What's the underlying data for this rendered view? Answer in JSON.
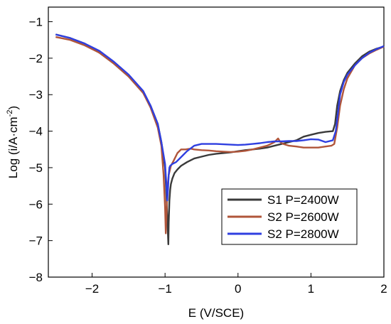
{
  "chart_data": {
    "type": "line",
    "title": "",
    "xlabel": "E (V/SCE)",
    "ylabel_main": "Log (i/A·cm",
    "ylabel_sup": "-2",
    "ylabel_close": ")",
    "xlim": [
      -2.6,
      2.0
    ],
    "ylim": [
      -8,
      -0.6
    ],
    "xticks": [
      -2,
      -1,
      0,
      1,
      2
    ],
    "xtick_labels": [
      "−2",
      "−1",
      "0",
      "1",
      "2"
    ],
    "yticks": [
      -8,
      -7,
      -6,
      -5,
      -4,
      -3,
      -2,
      -1
    ],
    "ytick_labels": [
      "−8",
      "−7",
      "−6",
      "−5",
      "−4",
      "−3",
      "−2",
      "−1"
    ],
    "grid": false,
    "legend_position": "bottom-right",
    "series": [
      {
        "name": "S1 P=2400W",
        "color": "#3a3a3a",
        "x": [
          -2.5,
          -2.3,
          -2.1,
          -1.9,
          -1.7,
          -1.5,
          -1.3,
          -1.2,
          -1.1,
          -1.05,
          -1.0,
          -0.98,
          -0.965,
          -0.955,
          -0.95,
          -0.94,
          -0.93,
          -0.92,
          -0.9,
          -0.87,
          -0.83,
          -0.78,
          -0.7,
          -0.6,
          -0.5,
          -0.4,
          -0.3,
          -0.2,
          -0.1,
          0.0,
          0.1,
          0.2,
          0.3,
          0.4,
          0.5,
          0.6,
          0.7,
          0.8,
          0.9,
          1.0,
          1.1,
          1.2,
          1.3,
          1.33,
          1.36,
          1.4,
          1.45,
          1.5,
          1.6,
          1.7,
          1.8,
          1.9,
          2.0
        ],
        "y": [
          -1.35,
          -1.45,
          -1.6,
          -1.85,
          -2.15,
          -2.5,
          -2.95,
          -3.3,
          -3.8,
          -4.3,
          -5.0,
          -5.8,
          -6.6,
          -7.1,
          -6.5,
          -5.9,
          -5.6,
          -5.45,
          -5.3,
          -5.15,
          -5.05,
          -4.95,
          -4.85,
          -4.75,
          -4.7,
          -4.65,
          -4.62,
          -4.6,
          -4.58,
          -4.55,
          -4.52,
          -4.5,
          -4.48,
          -4.45,
          -4.4,
          -4.35,
          -4.3,
          -4.25,
          -4.15,
          -4.1,
          -4.05,
          -4.02,
          -4.0,
          -3.8,
          -3.3,
          -2.9,
          -2.6,
          -2.4,
          -2.15,
          -1.95,
          -1.82,
          -1.74,
          -1.68
        ]
      },
      {
        "name": "S2 P=2600W",
        "color": "#b0553a",
        "x": [
          -2.5,
          -2.3,
          -2.1,
          -1.9,
          -1.7,
          -1.5,
          -1.3,
          -1.2,
          -1.1,
          -1.05,
          -1.02,
          -1.0,
          -0.99,
          -0.98,
          -0.97,
          -0.95,
          -0.92,
          -0.88,
          -0.83,
          -0.78,
          -0.72,
          -0.65,
          -0.6,
          -0.5,
          -0.4,
          -0.3,
          -0.2,
          -0.1,
          0.0,
          0.1,
          0.2,
          0.3,
          0.4,
          0.5,
          0.55,
          0.58,
          0.62,
          0.7,
          0.8,
          0.9,
          1.0,
          1.1,
          1.2,
          1.28,
          1.32,
          1.36,
          1.4,
          1.45,
          1.5,
          1.6,
          1.7,
          1.8,
          1.9,
          2.0
        ],
        "y": [
          -1.42,
          -1.5,
          -1.65,
          -1.85,
          -2.15,
          -2.5,
          -2.95,
          -3.35,
          -3.9,
          -4.4,
          -5.2,
          -6.1,
          -6.8,
          -6.3,
          -5.6,
          -5.2,
          -4.95,
          -4.8,
          -4.6,
          -4.5,
          -4.5,
          -4.48,
          -4.5,
          -4.52,
          -4.53,
          -4.55,
          -4.56,
          -4.57,
          -4.56,
          -4.54,
          -4.5,
          -4.45,
          -4.4,
          -4.3,
          -4.2,
          -4.3,
          -4.35,
          -4.4,
          -4.42,
          -4.45,
          -4.45,
          -4.45,
          -4.42,
          -4.4,
          -4.35,
          -3.9,
          -3.3,
          -2.85,
          -2.55,
          -2.2,
          -2.0,
          -1.87,
          -1.77,
          -1.68
        ]
      },
      {
        "name": "S2 P=2800W",
        "color": "#2f3fe0",
        "x": [
          -2.5,
          -2.3,
          -2.1,
          -1.9,
          -1.7,
          -1.5,
          -1.3,
          -1.2,
          -1.1,
          -1.05,
          -1.0,
          -0.98,
          -0.97,
          -0.96,
          -0.95,
          -0.94,
          -0.93,
          -0.9,
          -0.85,
          -0.8,
          -0.75,
          -0.7,
          -0.6,
          -0.5,
          -0.4,
          -0.3,
          -0.2,
          -0.1,
          0.0,
          0.1,
          0.2,
          0.3,
          0.4,
          0.5,
          0.6,
          0.7,
          0.8,
          0.9,
          1.0,
          1.1,
          1.2,
          1.3,
          1.34,
          1.37,
          1.4,
          1.45,
          1.5,
          1.6,
          1.7,
          1.8,
          1.9,
          2.0
        ],
        "y": [
          -1.35,
          -1.45,
          -1.6,
          -1.8,
          -2.1,
          -2.45,
          -2.9,
          -3.3,
          -3.8,
          -4.3,
          -4.9,
          -5.5,
          -5.9,
          -5.6,
          -5.2,
          -5.0,
          -4.95,
          -4.9,
          -4.85,
          -4.75,
          -4.65,
          -4.55,
          -4.4,
          -4.35,
          -4.35,
          -4.35,
          -4.36,
          -4.37,
          -4.38,
          -4.37,
          -4.35,
          -4.33,
          -4.3,
          -4.28,
          -4.28,
          -4.27,
          -4.27,
          -4.25,
          -4.22,
          -4.23,
          -4.3,
          -4.25,
          -4.0,
          -3.5,
          -3.0,
          -2.65,
          -2.45,
          -2.2,
          -2.0,
          -1.85,
          -1.75,
          -1.67
        ]
      }
    ]
  }
}
